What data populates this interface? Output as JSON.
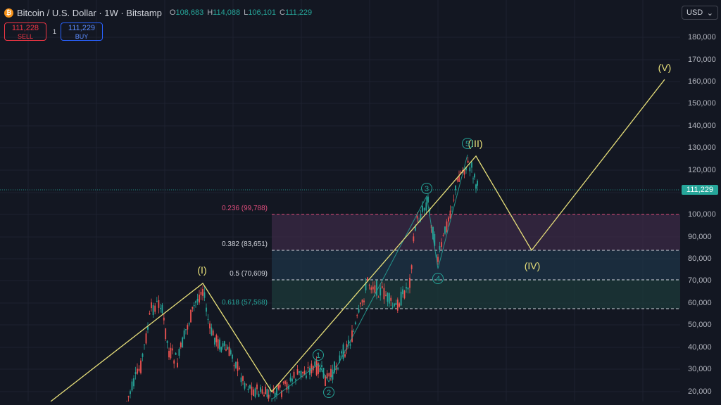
{
  "header": {
    "coin_glyph": "₿",
    "title": "Bitcoin / U.S. Dollar · 1W · Bitstamp",
    "open_label": "O",
    "open": "108,683",
    "high_label": "H",
    "high": "114,088",
    "low_label": "L",
    "low": "106,101",
    "close_label": "C",
    "close": "111,229"
  },
  "trade": {
    "sell_price": "111,228",
    "sell_label": "SELL",
    "spread": "1",
    "buy_price": "111,229",
    "buy_label": "BUY"
  },
  "currency": {
    "label": "USD",
    "chevron": "⌄"
  },
  "price_axis": {
    "ticks": [
      "180,000",
      "170,000",
      "160,000",
      "150,000",
      "140,000",
      "130,000",
      "120,000",
      "100,000",
      "90,000",
      "80,000",
      "70,000",
      "60,000",
      "50,000",
      "40,000",
      "30,000",
      "20,000"
    ],
    "current_price": "111,229"
  },
  "fib_levels": [
    {
      "label": "0.236 (99,788)",
      "color": "#e04e7d"
    },
    {
      "label": "0.382 (83,651)",
      "color": "#d1d4dc"
    },
    {
      "label": "0.5 (70,609)",
      "color": "#d1d4dc"
    },
    {
      "label": "0.618 (57,568)",
      "color": "#26a69a"
    }
  ],
  "wave_labels": {
    "major": [
      "(I)",
      "(III)",
      "(IV)",
      "(V)"
    ],
    "minor": [
      "1",
      "2",
      "3",
      "4",
      "5"
    ]
  },
  "colors": {
    "background": "#131722",
    "up": "#26a69a",
    "down": "#ef5350",
    "wave": "#e8e07a",
    "minor_wave": "#26a69a"
  }
}
